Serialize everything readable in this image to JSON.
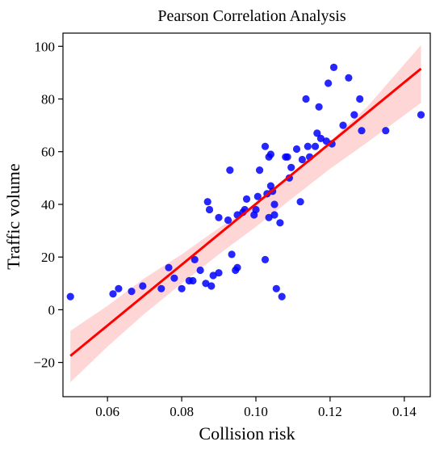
{
  "chart_data": {
    "type": "scatter",
    "title": "Pearson Correlation Analysis",
    "xlabel": "Collision risk",
    "ylabel": "Traffic volume",
    "xlim": [
      0.048,
      0.147
    ],
    "ylim": [
      -33,
      105
    ],
    "xticks": [
      0.06,
      0.08,
      0.1,
      0.12,
      0.14
    ],
    "xtick_labels": [
      "0.06",
      "0.08",
      "0.10",
      "0.12",
      "0.14"
    ],
    "yticks": [
      -20,
      0,
      20,
      40,
      60,
      80,
      100
    ],
    "ytick_labels": [
      "−20",
      "0",
      "20",
      "40",
      "60",
      "80",
      "100"
    ],
    "grid": false,
    "colors": {
      "points": "#0000ff",
      "line": "#ff0000",
      "band": "#ffc8c8"
    },
    "points": [
      [
        0.05,
        5
      ],
      [
        0.0615,
        6
      ],
      [
        0.063,
        8
      ],
      [
        0.0665,
        7
      ],
      [
        0.0695,
        9
      ],
      [
        0.0745,
        8
      ],
      [
        0.0765,
        16
      ],
      [
        0.078,
        12
      ],
      [
        0.08,
        8
      ],
      [
        0.082,
        11
      ],
      [
        0.083,
        11
      ],
      [
        0.0835,
        19
      ],
      [
        0.085,
        15
      ],
      [
        0.0865,
        10
      ],
      [
        0.087,
        41
      ],
      [
        0.0875,
        38
      ],
      [
        0.088,
        9
      ],
      [
        0.0885,
        13
      ],
      [
        0.09,
        14
      ],
      [
        0.09,
        35
      ],
      [
        0.0925,
        34
      ],
      [
        0.093,
        53
      ],
      [
        0.0935,
        21
      ],
      [
        0.0945,
        15
      ],
      [
        0.095,
        16
      ],
      [
        0.095,
        36
      ],
      [
        0.0965,
        37
      ],
      [
        0.097,
        38
      ],
      [
        0.0975,
        42
      ],
      [
        0.0995,
        36
      ],
      [
        0.1,
        38
      ],
      [
        0.1005,
        43
      ],
      [
        0.101,
        53
      ],
      [
        0.1025,
        19
      ],
      [
        0.1025,
        62
      ],
      [
        0.103,
        44
      ],
      [
        0.1035,
        35
      ],
      [
        0.1035,
        58
      ],
      [
        0.104,
        47
      ],
      [
        0.104,
        59
      ],
      [
        0.1045,
        45
      ],
      [
        0.105,
        40
      ],
      [
        0.105,
        36
      ],
      [
        0.1055,
        8
      ],
      [
        0.1065,
        33
      ],
      [
        0.107,
        5
      ],
      [
        0.108,
        58
      ],
      [
        0.1085,
        58
      ],
      [
        0.109,
        50
      ],
      [
        0.1095,
        54
      ],
      [
        0.111,
        61
      ],
      [
        0.112,
        41
      ],
      [
        0.1125,
        57
      ],
      [
        0.1135,
        80
      ],
      [
        0.114,
        62
      ],
      [
        0.1145,
        58
      ],
      [
        0.116,
        62
      ],
      [
        0.1165,
        67
      ],
      [
        0.117,
        77
      ],
      [
        0.1175,
        65
      ],
      [
        0.119,
        64
      ],
      [
        0.1195,
        86
      ],
      [
        0.1205,
        63
      ],
      [
        0.121,
        92
      ],
      [
        0.1235,
        70
      ],
      [
        0.125,
        88
      ],
      [
        0.1265,
        74
      ],
      [
        0.128,
        80
      ],
      [
        0.1285,
        68
      ],
      [
        0.135,
        68
      ],
      [
        0.1445,
        74
      ]
    ],
    "fit": {
      "x": [
        0.05,
        0.1445
      ],
      "y": [
        -17.5,
        91.5
      ],
      "band_x": [
        0.05,
        0.06,
        0.07,
        0.08,
        0.09,
        0.1,
        0.11,
        0.12,
        0.13,
        0.1445
      ],
      "band_lower": [
        -27.5,
        -14,
        -1.5,
        10,
        21,
        31.5,
        42.5,
        53.5,
        63.5,
        78.5
      ],
      "band_upper": [
        -8,
        1.5,
        12,
        21,
        31,
        40,
        51.5,
        64,
        77,
        100.5
      ]
    }
  }
}
